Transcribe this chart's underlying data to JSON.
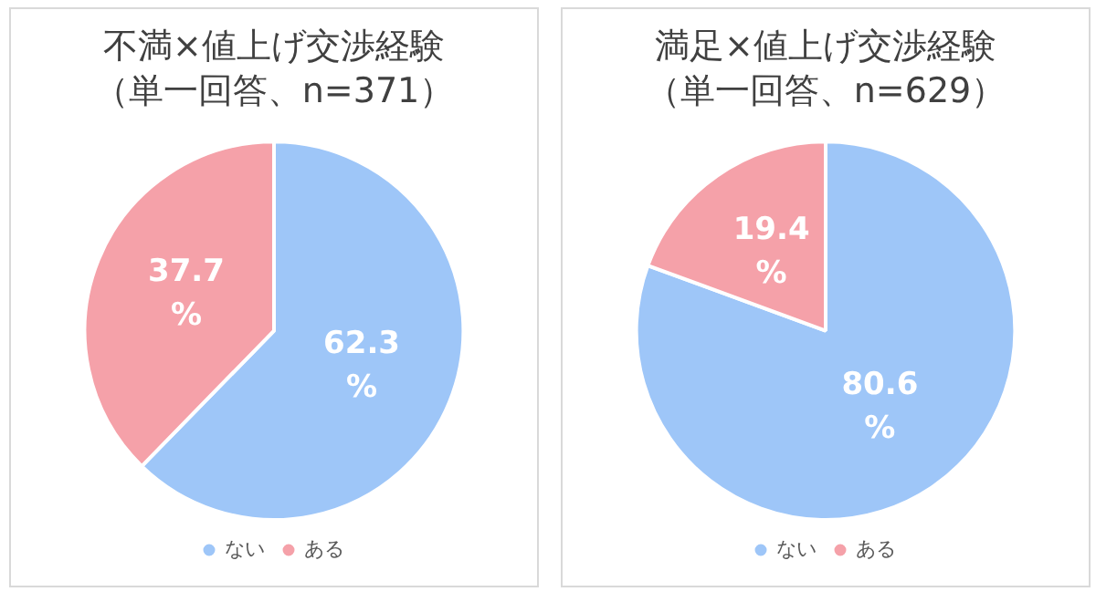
{
  "chart_data": [
    {
      "type": "pie",
      "title": "不満×値上げ交渉経験",
      "subtitle": "（単一回答、n=371）",
      "categories": [
        "ない",
        "ある"
      ],
      "values": [
        62.3,
        37.7
      ],
      "colors": [
        "#9ec6f8",
        "#f5a1a9"
      ],
      "value_labels": [
        "62.3%",
        "37.7%"
      ],
      "legend": "bottom"
    },
    {
      "type": "pie",
      "title": "満足×値上げ交渉経験",
      "subtitle": "（単一回答、n=629）",
      "categories": [
        "ない",
        "ある"
      ],
      "values": [
        80.6,
        19.4
      ],
      "colors": [
        "#9ec6f8",
        "#f5a1a9"
      ],
      "value_labels": [
        "80.6%",
        "19.4%"
      ],
      "legend": "bottom"
    }
  ]
}
